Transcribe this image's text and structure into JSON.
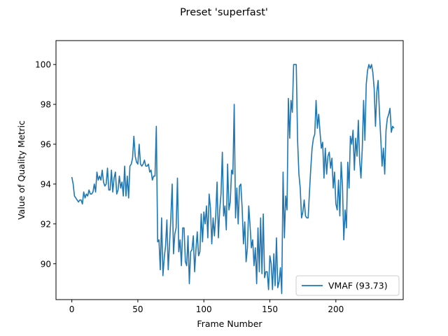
{
  "figure": {
    "suptitle": "Preset 'superfast'"
  },
  "chart_data": {
    "type": "line",
    "title": "Preset 'superfast'",
    "xlabel": "Frame Number",
    "ylabel": "Value of Quality Metric",
    "xlim": [
      -12,
      251
    ],
    "ylim": [
      88.2,
      101.2
    ],
    "xticks": [
      0,
      50,
      100,
      150,
      200
    ],
    "yticks": [
      90,
      92,
      94,
      96,
      98,
      100
    ],
    "grid": false,
    "legend_position": "lower right",
    "series": [
      {
        "name": "VMAF (93.73)",
        "color": "#1f77b4",
        "x_start": 0,
        "x_step": 1,
        "values": [
          94.35,
          94.0,
          93.4,
          93.3,
          93.2,
          93.1,
          93.2,
          93.2,
          93.0,
          93.6,
          93.3,
          93.5,
          93.4,
          93.7,
          93.5,
          93.5,
          93.6,
          94.0,
          93.6,
          94.6,
          94.2,
          94.4,
          94.2,
          94.7,
          94.1,
          93.9,
          94.0,
          94.8,
          93.7,
          93.7,
          94.7,
          93.6,
          94.3,
          94.6,
          93.5,
          93.7,
          94.4,
          93.8,
          94.1,
          93.4,
          94.9,
          93.4,
          94.4,
          93.3,
          94.9,
          95.0,
          95.3,
          96.4,
          95.4,
          95.1,
          95.0,
          96.0,
          95.0,
          94.9,
          95.0,
          95.2,
          94.9,
          94.9,
          95.0,
          94.6,
          94.7,
          94.2,
          94.4,
          94.4,
          96.9,
          91.1,
          91.2,
          89.7,
          92.3,
          89.4,
          90.3,
          90.9,
          92.2,
          89.7,
          91.0,
          92.3,
          94.0,
          90.5,
          91.5,
          91.8,
          94.3,
          90.6,
          91.2,
          89.9,
          91.8,
          91.8,
          90.1,
          89.9,
          91.4,
          89.0,
          90.6,
          90.7,
          91.4,
          89.6,
          90.7,
          91.6,
          90.4,
          90.6,
          92.5,
          91.1,
          92.6,
          92.0,
          92.9,
          91.3,
          93.5,
          92.8,
          91.0,
          92.3,
          91.4,
          92.4,
          94.1,
          91.3,
          92.7,
          93.5,
          95.6,
          92.4,
          92.9,
          91.7,
          95.0,
          92.7,
          93.1,
          94.7,
          94.5,
          98.0,
          92.3,
          93.8,
          92.0,
          93.9,
          94.0,
          92.8,
          91.0,
          92.1,
          90.1,
          90.8,
          92.9,
          91.9,
          90.8,
          91.2,
          89.9,
          90.8,
          89.0,
          91.8,
          89.6,
          92.3,
          89.5,
          92.5,
          89.3,
          89.6,
          89.6,
          88.7,
          90.4,
          90.0,
          88.7,
          90.5,
          88.9,
          91.3,
          88.8,
          89.1,
          89.8,
          88.5,
          94.6,
          91.3,
          93.4,
          92.7,
          98.3,
          96.3,
          98.2,
          97.6,
          100.0,
          100.0,
          100.0,
          96.2,
          94.5,
          93.8,
          92.3,
          92.6,
          93.2,
          92.4,
          92.3,
          92.3,
          93.6,
          94.8,
          95.8,
          96.3,
          96.5,
          98.2,
          96.8,
          97.5,
          96.6,
          95.8,
          96.1,
          94.3,
          95.8,
          94.5,
          95.4,
          95.6,
          94.8,
          95.3,
          93.8,
          94.6,
          93.0,
          92.7,
          94.2,
          92.4,
          95.1,
          93.9,
          91.2,
          92.7,
          91.8,
          95.1,
          93.8,
          96.4,
          96.0,
          96.7,
          94.7,
          96.3,
          95.4,
          97.2,
          95.2,
          94.3,
          95.8,
          98.2,
          96.2,
          99.0,
          99.7,
          100.0,
          99.8,
          100.0,
          99.6,
          98.8,
          96.9,
          98.6,
          99.2,
          97.6,
          96.3,
          94.9,
          95.8,
          94.5,
          96.7,
          97.3,
          97.5,
          97.8,
          96.6,
          96.9,
          96.8
        ]
      }
    ]
  }
}
